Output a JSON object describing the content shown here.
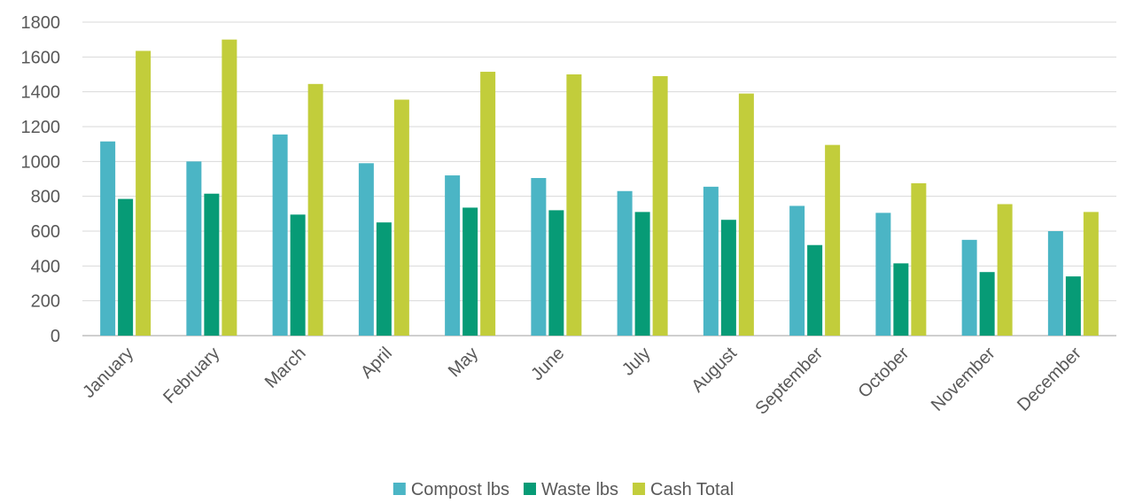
{
  "chart_data": {
    "type": "bar",
    "categories": [
      "January",
      "February",
      "March",
      "April",
      "May",
      "June",
      "July",
      "August",
      "September",
      "October",
      "November",
      "December"
    ],
    "series": [
      {
        "name": "Compost lbs",
        "color": "#4bb5c5",
        "values": [
          1115,
          1000,
          1155,
          990,
          920,
          905,
          830,
          855,
          745,
          705,
          550,
          600
        ]
      },
      {
        "name": "Waste lbs",
        "color": "#079b76",
        "values": [
          785,
          815,
          695,
          650,
          735,
          720,
          710,
          665,
          520,
          415,
          365,
          340
        ]
      },
      {
        "name": "Cash Total",
        "color": "#c2cd3b",
        "values": [
          1635,
          1700,
          1445,
          1355,
          1515,
          1500,
          1490,
          1390,
          1095,
          875,
          755,
          710
        ]
      }
    ],
    "title": "",
    "xlabel": "",
    "ylabel": "",
    "ylim": [
      0,
      1800
    ],
    "yticks": [
      0,
      200,
      400,
      600,
      800,
      1000,
      1200,
      1400,
      1600,
      1800
    ],
    "grid": true,
    "legend": "bottom"
  }
}
